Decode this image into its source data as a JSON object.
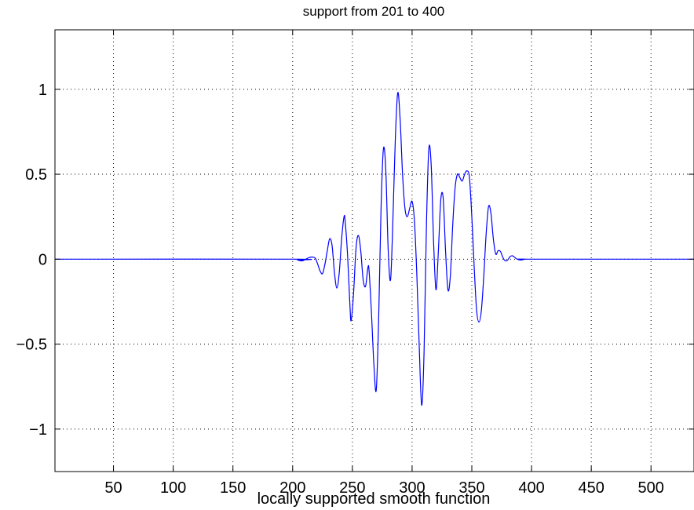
{
  "chart_data": {
    "type": "line",
    "title": "support from 201 to 400",
    "xlabel": "locally supported smooth function",
    "ylabel": "",
    "xlim": [
      1,
      536
    ],
    "ylim": [
      -1.25,
      1.35
    ],
    "grid": true,
    "xticks": [
      50,
      100,
      150,
      200,
      250,
      300,
      350,
      400,
      450,
      500
    ],
    "xtick_labels": [
      "50",
      "100",
      "150",
      "200",
      "250",
      "300",
      "350",
      "400",
      "450",
      "500"
    ],
    "yticks": [
      -1,
      -0.5,
      0,
      0.5,
      1
    ],
    "ytick_labels": [
      "−1",
      "−0.5",
      "0",
      "0.5",
      "1"
    ],
    "colors": {
      "line": "#0000ff",
      "axes": "#000000",
      "grid": "#000000"
    },
    "series": [
      {
        "name": "",
        "x": [
          1,
          200,
          204,
          208,
          211,
          214,
          217,
          219,
          221,
          223,
          225,
          227,
          229,
          231,
          233,
          235,
          237,
          239,
          241,
          243,
          244,
          246,
          248,
          249,
          251,
          253,
          255,
          257,
          259,
          261,
          263,
          264,
          266,
          268,
          270,
          272,
          274,
          276,
          278,
          280,
          282,
          284,
          286,
          288,
          290,
          292,
          294,
          296,
          298,
          300,
          302,
          304,
          306,
          308,
          310,
          312,
          314,
          316,
          318,
          320,
          322,
          324,
          326,
          328,
          330,
          332,
          334,
          336,
          338,
          340,
          342,
          344,
          346,
          348,
          350,
          352,
          354,
          356,
          358,
          360,
          362,
          364,
          366,
          368,
          370,
          372,
          374,
          376,
          378,
          380,
          382,
          384,
          386,
          388,
          391,
          395,
          400,
          536
        ],
        "y": [
          0,
          0,
          -0.005,
          -0.01,
          0,
          0.01,
          0.012,
          0.005,
          -0.03,
          -0.07,
          -0.085,
          -0.03,
          0.05,
          0.12,
          0.08,
          -0.08,
          -0.17,
          -0.08,
          0.12,
          0.25,
          0.22,
          0.02,
          -0.28,
          -0.36,
          -0.2,
          0.06,
          0.14,
          0.05,
          -0.12,
          -0.16,
          -0.05,
          -0.07,
          -0.32,
          -0.62,
          -0.77,
          -0.35,
          0.3,
          0.65,
          0.52,
          0.05,
          -0.12,
          0.25,
          0.72,
          0.98,
          0.82,
          0.5,
          0.3,
          0.25,
          0.3,
          0.34,
          0.22,
          -0.1,
          -0.52,
          -0.86,
          -0.55,
          0.2,
          0.65,
          0.55,
          0.1,
          -0.18,
          0.05,
          0.35,
          0.36,
          0.05,
          -0.18,
          -0.1,
          0.2,
          0.42,
          0.5,
          0.48,
          0.46,
          0.5,
          0.52,
          0.48,
          0.25,
          -0.05,
          -0.3,
          -0.37,
          -0.3,
          -0.1,
          0.15,
          0.31,
          0.27,
          0.12,
          0.03,
          0.05,
          0.045,
          0.01,
          -0.01,
          -0.005,
          0.015,
          0.02,
          0.01,
          0,
          -0.005,
          0,
          0,
          0
        ]
      }
    ]
  }
}
